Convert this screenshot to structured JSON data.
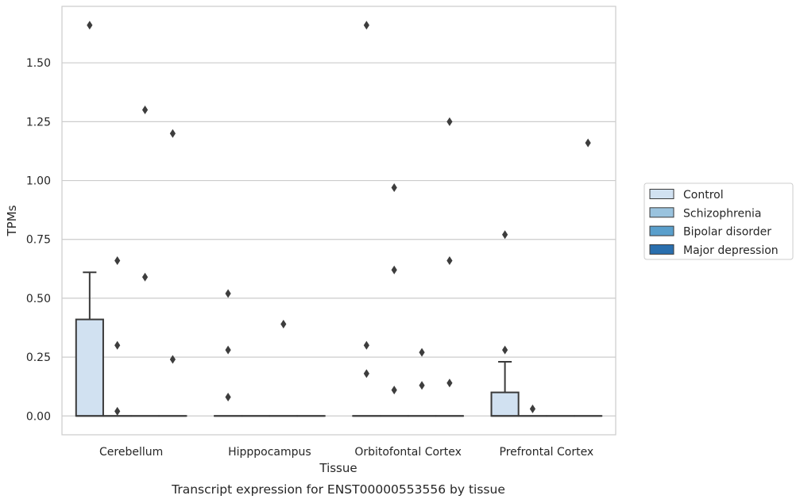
{
  "chart_data": {
    "type": "box",
    "caption": "Transcript expression for ENST00000553556 by tissue",
    "xlabel": "Tissue",
    "ylabel": "TPMs",
    "ylim": [
      -0.08,
      1.74
    ],
    "yticks": [
      0.0,
      0.25,
      0.5,
      0.75,
      1.0,
      1.25,
      1.5
    ],
    "ytick_labels": [
      "0.00",
      "0.25",
      "0.50",
      "0.75",
      "1.00",
      "1.25",
      "1.50"
    ],
    "grid": true,
    "legend_position": "right",
    "categories": [
      "Cerebellum",
      "Hipppocampus",
      "Orbitofontal Cortex",
      "Prefrontal Cortex"
    ],
    "series": [
      {
        "name": "Control",
        "color": "#d1e1f1",
        "boxes": [
          {
            "q1": 0.0,
            "median": 0.0,
            "q3": 0.41,
            "whisker_low": 0.0,
            "whisker_high": 0.61,
            "outliers": [
              1.66
            ]
          },
          {
            "q1": 0.0,
            "median": 0.0,
            "q3": 0.0,
            "whisker_low": 0.0,
            "whisker_high": 0.0,
            "outliers": [
              0.52,
              0.28,
              0.08
            ]
          },
          {
            "q1": 0.0,
            "median": 0.0,
            "q3": 0.0,
            "whisker_low": 0.0,
            "whisker_high": 0.0,
            "outliers": [
              1.66,
              0.3,
              0.18
            ]
          },
          {
            "q1": 0.0,
            "median": 0.0,
            "q3": 0.1,
            "whisker_low": 0.0,
            "whisker_high": 0.23,
            "outliers": [
              0.77,
              0.28
            ]
          }
        ]
      },
      {
        "name": "Schizophrenia",
        "color": "#9ac3de",
        "boxes": [
          {
            "q1": 0.0,
            "median": 0.0,
            "q3": 0.0,
            "whisker_low": 0.0,
            "whisker_high": 0.0,
            "outliers": [
              0.66,
              0.3,
              0.02
            ]
          },
          {
            "q1": 0.0,
            "median": 0.0,
            "q3": 0.0,
            "whisker_low": 0.0,
            "whisker_high": 0.0,
            "outliers": []
          },
          {
            "q1": 0.0,
            "median": 0.0,
            "q3": 0.0,
            "whisker_low": 0.0,
            "whisker_high": 0.0,
            "outliers": [
              0.97,
              0.62,
              0.11
            ]
          },
          {
            "q1": 0.0,
            "median": 0.0,
            "q3": 0.0,
            "whisker_low": 0.0,
            "whisker_high": 0.0,
            "outliers": [
              0.03
            ]
          }
        ]
      },
      {
        "name": "Bipolar disorder",
        "color": "#5a9fcc",
        "boxes": [
          {
            "q1": 0.0,
            "median": 0.0,
            "q3": 0.0,
            "whisker_low": 0.0,
            "whisker_high": 0.0,
            "outliers": [
              1.3,
              0.59
            ]
          },
          {
            "q1": 0.0,
            "median": 0.0,
            "q3": 0.0,
            "whisker_low": 0.0,
            "whisker_high": 0.0,
            "outliers": [
              0.39
            ]
          },
          {
            "q1": 0.0,
            "median": 0.0,
            "q3": 0.0,
            "whisker_low": 0.0,
            "whisker_high": 0.0,
            "outliers": [
              0.27,
              0.13
            ]
          },
          {
            "q1": 0.0,
            "median": 0.0,
            "q3": 0.0,
            "whisker_low": 0.0,
            "whisker_high": 0.0,
            "outliers": []
          }
        ]
      },
      {
        "name": "Major depression",
        "color": "#2a6fae",
        "boxes": [
          {
            "q1": 0.0,
            "median": 0.0,
            "q3": 0.0,
            "whisker_low": 0.0,
            "whisker_high": 0.0,
            "outliers": [
              1.2,
              0.24
            ]
          },
          {
            "q1": 0.0,
            "median": 0.0,
            "q3": 0.0,
            "whisker_low": 0.0,
            "whisker_high": 0.0,
            "outliers": []
          },
          {
            "q1": 0.0,
            "median": 0.0,
            "q3": 0.0,
            "whisker_low": 0.0,
            "whisker_high": 0.0,
            "outliers": [
              1.25,
              0.66,
              0.14
            ]
          },
          {
            "q1": 0.0,
            "median": 0.0,
            "q3": 0.0,
            "whisker_low": 0.0,
            "whisker_high": 0.0,
            "outliers": [
              1.16
            ]
          }
        ]
      }
    ]
  }
}
